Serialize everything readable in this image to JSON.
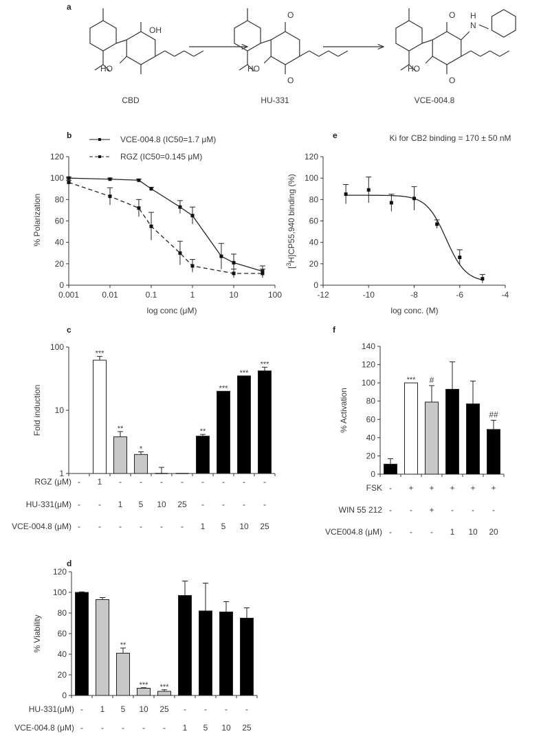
{
  "panel_labels": {
    "a": "a",
    "b": "b",
    "c": "c",
    "d": "d",
    "e": "e",
    "f": "f"
  },
  "structures": {
    "names": [
      "CBD",
      "HU-331",
      "VCE-004.8"
    ],
    "atoms": {
      "cbd_oh": "OH",
      "cbd_ho": "HO",
      "hu_o1": "O",
      "hu_o2": "O",
      "hu_ho": "HO",
      "vce_o1": "O",
      "vce_o2": "O",
      "vce_ho": "HO",
      "vce_h": "H",
      "vce_n": "N"
    }
  },
  "chart_data": [
    {
      "id": "b",
      "type": "line",
      "xlabel": "log conc (μM)",
      "ylabel": "% Polarization",
      "xscale": "log",
      "xlim": [
        0.001,
        100
      ],
      "ylim": [
        0,
        120
      ],
      "xticks": [
        "0.001",
        "0.01",
        "0.1",
        "1",
        "10",
        "100"
      ],
      "yticks": [
        "0",
        "20",
        "40",
        "60",
        "80",
        "100",
        "120"
      ],
      "legend_position": "top",
      "series": [
        {
          "name": "VCE-004.8  (IC50=1.7 μM)",
          "style": "solid",
          "x": [
            0.001,
            0.01,
            0.05,
            0.1,
            0.5,
            1,
            5,
            10,
            50
          ],
          "y": [
            100,
            99,
            98,
            90,
            73,
            65,
            27,
            21,
            13
          ],
          "err": [
            1,
            1,
            1,
            1.5,
            6,
            8,
            12,
            8,
            5
          ]
        },
        {
          "name": "RGZ (IC50=0.145 μM)",
          "style": "dashed",
          "x": [
            0.001,
            0.01,
            0.05,
            0.1,
            0.5,
            1,
            10,
            50
          ],
          "y": [
            96,
            83,
            72,
            55,
            30,
            18,
            11,
            11
          ],
          "err": [
            2,
            8,
            8,
            13,
            11,
            6,
            4,
            4
          ]
        }
      ]
    },
    {
      "id": "e",
      "type": "scatter",
      "title": "Ki for CB2 binding = 170 ± 50 nM",
      "xlabel": "log conc. (M)",
      "ylabel_sup": "3",
      "ylabel_pre": "[",
      "ylabel": "H]CP55,940 binding (%)",
      "xlim": [
        -12,
        -4
      ],
      "ylim": [
        0,
        120
      ],
      "xticks": [
        "-12",
        "-10",
        "-8",
        "-6",
        "-4"
      ],
      "yticks": [
        "0",
        "20",
        "40",
        "60",
        "80",
        "100",
        "120"
      ],
      "x": [
        -11,
        -10,
        -9,
        -8,
        -7,
        -6,
        -5
      ],
      "y": [
        85,
        89,
        77,
        81,
        57,
        26,
        6
      ],
      "err": [
        9,
        12,
        8,
        11,
        4,
        7,
        4
      ],
      "fit": {
        "top": 84,
        "bottom": 3,
        "logIC50": -6.6,
        "hill": 1
      }
    },
    {
      "id": "c",
      "type": "bar",
      "ylabel": "Fold induction",
      "yscale": "log",
      "ylim": [
        1,
        100
      ],
      "yticks": [
        "1",
        "10",
        "100"
      ],
      "values": [
        1,
        62,
        3.8,
        2.0,
        1.0,
        1.0,
        3.9,
        20,
        35,
        42
      ],
      "err": [
        0,
        9,
        0.8,
        0.2,
        0.25,
        0,
        0.25,
        0,
        0,
        6
      ],
      "fills": [
        "none",
        "#ffffff",
        "#c8c8c8",
        "#c8c8c8",
        "#c8c8c8",
        "#c8c8c8",
        "#000000",
        "#000000",
        "#000000",
        "#000000"
      ],
      "annotations": [
        "",
        "***",
        "**",
        "*",
        "",
        "",
        "**",
        "***",
        "***",
        "***"
      ],
      "rows": [
        {
          "label": "RGZ (μM)",
          "cells": [
            "-",
            "1",
            "-",
            "-",
            "-",
            "-",
            "-",
            "-",
            "-",
            "-"
          ]
        },
        {
          "label": "HU-331(μM)",
          "cells": [
            "-",
            "-",
            "1",
            "5",
            "10",
            "25",
            "-",
            "-",
            "-",
            "-"
          ]
        },
        {
          "label": "VCE-004.8 (μM)",
          "cells": [
            "-",
            "-",
            "-",
            "-",
            "-",
            "-",
            "1",
            "5",
            "10",
            "25"
          ]
        }
      ]
    },
    {
      "id": "f",
      "type": "bar",
      "ylabel": "% Activation",
      "ylim": [
        0,
        140
      ],
      "yticks": [
        "0",
        "20",
        "40",
        "60",
        "80",
        "100",
        "120",
        "140"
      ],
      "values": [
        11,
        100,
        79,
        93,
        77,
        49
      ],
      "err": [
        6,
        0,
        18,
        30,
        25,
        10
      ],
      "fills": [
        "#000000",
        "#ffffff",
        "#c8c8c8",
        "#000000",
        "#000000",
        "#000000"
      ],
      "annotations": [
        "",
        "***",
        "#",
        "",
        "",
        "##"
      ],
      "rows": [
        {
          "label": "FSK",
          "cells": [
            "-",
            "+",
            "+",
            "+",
            "+",
            "+"
          ]
        },
        {
          "label": "WIN 55 212",
          "cells": [
            "-",
            "-",
            "+",
            "-",
            "-",
            "-"
          ]
        },
        {
          "label": "VCE004.8 (μM)",
          "cells": [
            "-",
            "-",
            "-",
            "1",
            "10",
            "20"
          ]
        }
      ]
    },
    {
      "id": "d",
      "type": "bar",
      "ylabel": "% Viability",
      "ylim": [
        0,
        120
      ],
      "yticks": [
        "0",
        "20",
        "40",
        "60",
        "80",
        "100",
        "120"
      ],
      "values": [
        100,
        93,
        41,
        7,
        4,
        97,
        82,
        81,
        75
      ],
      "err": [
        0.5,
        2,
        5,
        0.5,
        1.5,
        14,
        27,
        10,
        10
      ],
      "fills": [
        "#000000",
        "#c8c8c8",
        "#c8c8c8",
        "#c8c8c8",
        "#c8c8c8",
        "#000000",
        "#000000",
        "#000000",
        "#000000"
      ],
      "annotations": [
        "",
        "",
        "**",
        "***",
        "***",
        "",
        "",
        "",
        ""
      ],
      "rows": [
        {
          "label": "HU-331(μM)",
          "cells": [
            "-",
            "1",
            "5",
            "10",
            "25",
            "-",
            "-",
            "-",
            "-"
          ]
        },
        {
          "label": "VCE-004.8 (μM)",
          "cells": [
            "-",
            "-",
            "-",
            "-",
            "-",
            "1",
            "5",
            "10",
            "25"
          ]
        }
      ]
    }
  ]
}
